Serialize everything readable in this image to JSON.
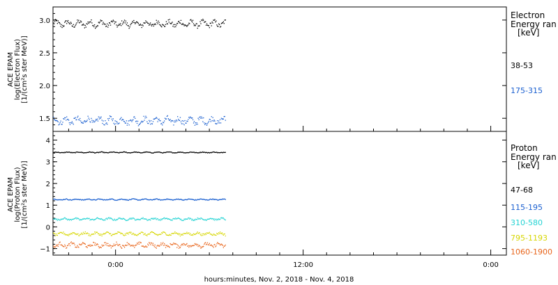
{
  "xlabel": "hours:minutes, Nov.  2, 2018 - Nov.  4, 2018",
  "x_ticks": [
    "0:00",
    "12:00",
    "0:00"
  ],
  "chart_data": [
    {
      "type": "scatter",
      "panel": "electron",
      "ylabel_lines": [
        "ACE EPAM",
        "log(Electron Flux)",
        "[1/(cm²s ster MeV)]"
      ],
      "ylim": [
        1.3,
        3.2
      ],
      "y_ticks": [
        {
          "value": 1.5,
          "label": "1.5"
        },
        {
          "value": 2.0,
          "label": "2.0"
        },
        {
          "value": 2.5,
          "label": "2.5"
        },
        {
          "value": 3.0,
          "label": "3.0"
        }
      ],
      "legend": {
        "title_lines": [
          "Electron",
          "Energy ran",
          "[keV]"
        ],
        "placement": "right"
      },
      "series": [
        {
          "name": "38-53",
          "color": "#000000",
          "mean": 2.95,
          "spread": 0.07
        },
        {
          "name": "175-315",
          "color": "#1a5fd0",
          "mean": 1.47,
          "spread": 0.08
        }
      ]
    },
    {
      "type": "scatter",
      "panel": "proton",
      "ylabel_lines": [
        "ACE EPAM",
        "log(Proton Flux)",
        "[1/(cm²s ster MeV)]"
      ],
      "ylim": [
        -1.3,
        4.4
      ],
      "y_ticks": [
        {
          "value": -1,
          "label": "−1"
        },
        {
          "value": 0,
          "label": "0"
        },
        {
          "value": 1,
          "label": "1"
        },
        {
          "value": 2,
          "label": "2"
        },
        {
          "value": 3,
          "label": "3"
        },
        {
          "value": 4,
          "label": "4"
        }
      ],
      "legend": {
        "title_lines": [
          "Proton",
          "Energy ran",
          "[keV]"
        ],
        "placement": "right"
      },
      "series": [
        {
          "name": "47-68",
          "color": "#000000",
          "mean": 3.45,
          "spread": 0.03
        },
        {
          "name": "115-195",
          "color": "#1a5fd0",
          "mean": 1.28,
          "spread": 0.04
        },
        {
          "name": "310-580",
          "color": "#22d3d3",
          "mean": 0.38,
          "spread": 0.07
        },
        {
          "name": "795-1193",
          "color": "#d6d600",
          "mean": -0.3,
          "spread": 0.1
        },
        {
          "name": "1060-1900",
          "color": "#e8641a",
          "mean": -0.82,
          "spread": 0.15
        }
      ]
    }
  ],
  "time_axis": {
    "start_hours": -8,
    "end_hours": 50,
    "data_end_hours": 14,
    "major_hours": [
      0,
      24,
      48
    ],
    "minor_step_hours": 3
  }
}
